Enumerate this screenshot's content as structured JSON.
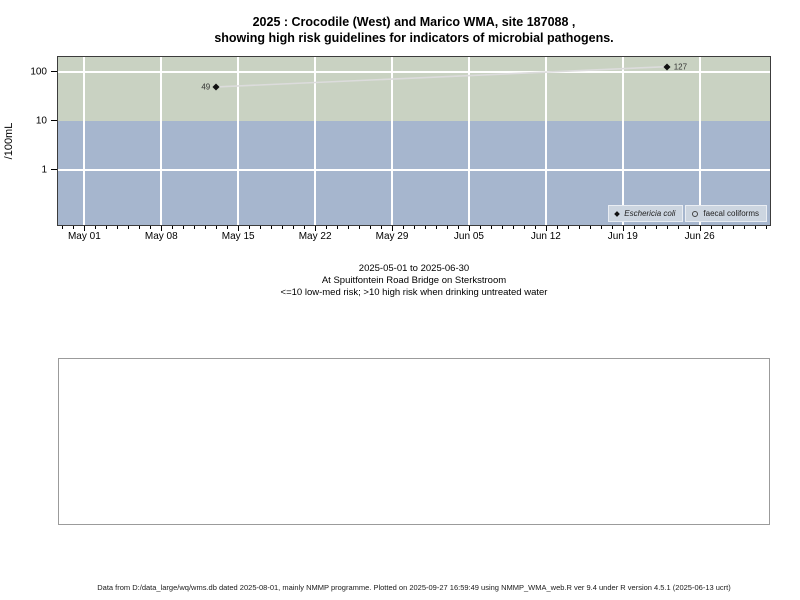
{
  "title": {
    "line1": "2025 : Crocodile (West) and Marico WMA, site 187088 ,",
    "line2": "showing high risk guidelines for indicators of microbial pathogens."
  },
  "chart_data": {
    "type": "scatter",
    "ylabel": "/100mL",
    "y_scale": "log",
    "ylim": [
      0.075,
      200
    ],
    "y_ticks": [
      "100",
      "10",
      "1"
    ],
    "h_grid_values": [
      100,
      1
    ],
    "x_axis_start_date": "2025-05-01",
    "x_day_range": [
      -2.4,
      62.4
    ],
    "x_minor_day_range": [
      -2,
      62
    ],
    "x_major_day_offsets": [
      0,
      7,
      14,
      21,
      28,
      35,
      42,
      49,
      56
    ],
    "x_tick_labels": [
      "May 01",
      "May 08",
      "May 15",
      "May 22",
      "May 29",
      "Jun 05",
      "Jun 12",
      "Jun 19",
      "Jun 26"
    ],
    "bands": [
      {
        "name": "high-risk-band",
        "from": 10,
        "to": 200,
        "color": "#c9d2c2"
      },
      {
        "name": "low-med-risk-band",
        "from": 0.075,
        "to": 10,
        "color": "#a6b6ce"
      }
    ],
    "series": [
      {
        "name": "Eschericia coli",
        "marker": "filled-diamond",
        "points": [
          {
            "day_offset": 12,
            "value": 49,
            "label": "49",
            "label_side": "left"
          },
          {
            "day_offset": 53,
            "value": 127,
            "label": "127",
            "label_side": "right"
          }
        ]
      },
      {
        "name": "faecal coliforms",
        "marker": "open-circle",
        "points": []
      }
    ],
    "legend": {
      "position": "inside-bottom-right",
      "entries": [
        {
          "marker": "filled-diamond",
          "label": "Eschericia coli",
          "italic": true
        },
        {
          "marker": "open-circle",
          "label": "faecal coliforms",
          "italic": false
        }
      ]
    }
  },
  "subtitle": {
    "line1": "2025-05-01 to 2025-06-30",
    "line2": "At Spuitfontein Road Bridge on Sterkstroom",
    "line3": "<=10 low-med risk; >10 high risk when drinking untreated water"
  },
  "footer": {
    "text": "Data from D:/data_large/wq/wms.db dated 2025-08-01, mainly NMMP programme. Plotted on 2025-09-27 16:59:49 using NMMP_WMA_web.R ver 9.4 under R version 4.5.1 (2025-06-13 ucrt)"
  },
  "colors": {
    "band_high_risk": "#c9d2c2",
    "band_low_med_risk": "#a6b6ce",
    "gridline": "#ffffff",
    "series_line": "#dcdcdc",
    "marker": "#111111",
    "legend_bg": "#ccd5e0"
  }
}
